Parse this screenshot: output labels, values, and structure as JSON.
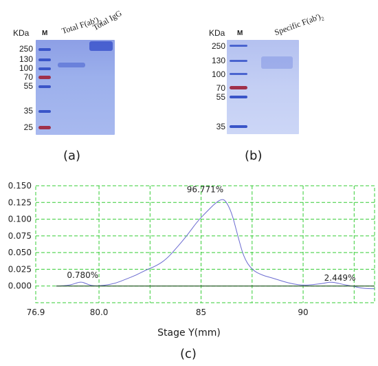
{
  "panel_a": {
    "unit_label": "KDa",
    "lane_marker": "M",
    "lane1_label": "Total F(ab')",
    "lane1_sub": "2",
    "lane2_label": "Total IgG",
    "marker_weights": [
      "250",
      "130",
      "100",
      "70",
      "55",
      "35",
      "25"
    ],
    "caption": "(a)"
  },
  "panel_b": {
    "unit_label": "KDa",
    "lane_marker": "M",
    "lane1_label": "Specific F(ab')",
    "lane1_sub": "2",
    "marker_weights": [
      "250",
      "130",
      "100",
      "70",
      "55",
      "35"
    ],
    "caption": "(b)"
  },
  "panel_c": {
    "caption": "(c)",
    "chart_data": {
      "type": "line",
      "xlabel": "Stage Y(mm)",
      "ylabel": "",
      "xlim": [
        76.9,
        93.5
      ],
      "ylim": [
        -0.025,
        0.15
      ],
      "x_ticks": [
        "76.9",
        "80.0",
        "85",
        "90"
      ],
      "x_tick_values": [
        76.9,
        80.0,
        85,
        90
      ],
      "y_ticks": [
        "0.150",
        "0.125",
        "0.100",
        "0.075",
        "0.050",
        "0.025",
        "0.000"
      ],
      "y_tick_values": [
        0.15,
        0.125,
        0.1,
        0.075,
        0.05,
        0.025,
        0.0
      ],
      "grid": true,
      "annotations": [
        {
          "text": "0.780%",
          "x": 79.2,
          "y": 0.012
        },
        {
          "text": "96.771%",
          "x": 85.2,
          "y": 0.14
        },
        {
          "text": "2.449%",
          "x": 91.8,
          "y": 0.008
        }
      ],
      "series": [
        {
          "color": "#6a6ad0",
          "x": [
            77.9,
            78.6,
            79.1,
            79.4,
            79.7,
            80.3,
            80.8,
            81.3,
            81.8,
            82.3,
            82.8,
            83.3,
            83.8,
            84.3,
            84.8,
            85.3,
            85.7,
            86.0,
            86.2,
            86.5,
            86.8,
            87.1,
            87.5,
            88.0,
            88.5,
            89.0,
            89.5,
            90.0,
            90.5,
            91.0,
            91.3,
            91.6,
            92.0,
            92.4,
            92.8,
            93.2,
            93.5
          ],
          "y": [
            0.0,
            0.001,
            0.007,
            0.003,
            0.0,
            0.001,
            0.004,
            0.01,
            0.016,
            0.024,
            0.03,
            0.04,
            0.057,
            0.075,
            0.096,
            0.112,
            0.124,
            0.13,
            0.128,
            0.11,
            0.075,
            0.042,
            0.024,
            0.016,
            0.012,
            0.007,
            0.003,
            0.001,
            0.002,
            0.004,
            0.006,
            0.005,
            0.002,
            0.0,
            -0.003,
            -0.004,
            -0.004
          ]
        },
        {
          "color": "#2d5a2d",
          "x": [
            77.9,
            93.5
          ],
          "y": [
            0.0,
            0.0
          ]
        }
      ]
    }
  },
  "colors": {
    "gel_blue": "#8fa3e6",
    "band_blue": "#3a55c8",
    "band_red": "#a0304a",
    "grid_green": "#33cc33",
    "line_blue": "#6a6ad0"
  }
}
